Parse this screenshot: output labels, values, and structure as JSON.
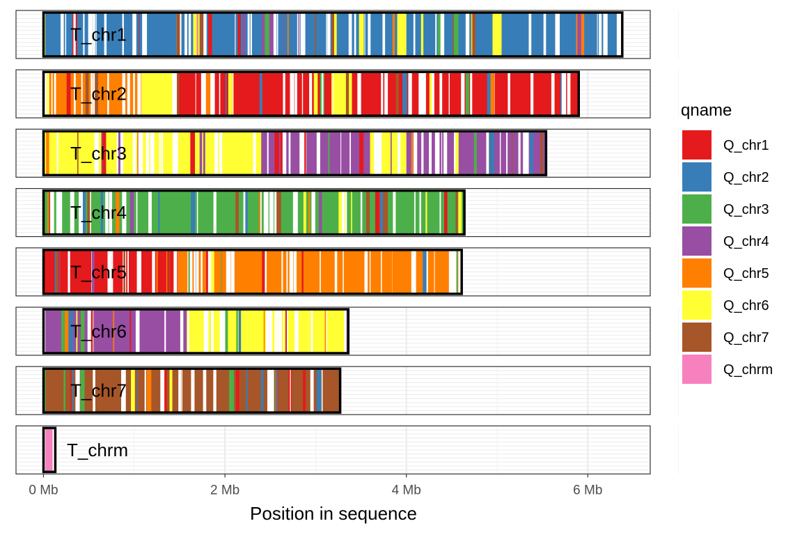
{
  "chart_data": {
    "type": "bar",
    "subtype": "chromosome-painting",
    "title": "",
    "xlabel": "Position in sequence",
    "ylabel": "",
    "xlim": [
      -0.15,
      6.7
    ],
    "x_unit": "Mb",
    "x_ticks": [
      {
        "value": 0,
        "label": "0 Mb"
      },
      {
        "value": 2,
        "label": "2 Mb"
      },
      {
        "value": 4,
        "label": "4 Mb"
      },
      {
        "value": 6,
        "label": "6 Mb"
      }
    ],
    "grid": true,
    "legend": {
      "title": "qname",
      "position": "right",
      "entries": [
        {
          "name": "Q_chr1",
          "color": "#E41A1C"
        },
        {
          "name": "Q_chr2",
          "color": "#377EB8"
        },
        {
          "name": "Q_chr3",
          "color": "#4DAF4A"
        },
        {
          "name": "Q_chr4",
          "color": "#984EA3"
        },
        {
          "name": "Q_chr5",
          "color": "#FF7F00"
        },
        {
          "name": "Q_chr6",
          "color": "#FFFF33"
        },
        {
          "name": "Q_chr7",
          "color": "#A65628"
        },
        {
          "name": "Q_chrm",
          "color": "#F781BF"
        }
      ]
    },
    "chromosomes": [
      {
        "name": "T_chr1",
        "length": 6.38,
        "segments": [
          {
            "start": 0.0,
            "end": 0.02,
            "q": "Q_chr6"
          },
          {
            "start": 0.02,
            "end": 1.65,
            "q": "Q_chr2"
          },
          {
            "start": 1.65,
            "end": 1.72,
            "q": "Q_chr6"
          },
          {
            "start": 1.72,
            "end": 3.9,
            "q": "Q_chr2"
          },
          {
            "start": 3.9,
            "end": 4.0,
            "q": "Q_chr6"
          },
          {
            "start": 4.0,
            "end": 4.95,
            "q": "Q_chr2"
          },
          {
            "start": 4.95,
            "end": 5.05,
            "q": "Q_chr6"
          },
          {
            "start": 5.05,
            "end": 6.33,
            "q": "Q_chr2"
          }
        ]
      },
      {
        "name": "T_chr2",
        "length": 5.9,
        "segments": [
          {
            "start": 0.0,
            "end": 1.08,
            "q": "Q_chr5"
          },
          {
            "start": 1.08,
            "end": 1.42,
            "q": "Q_chr6"
          },
          {
            "start": 1.42,
            "end": 3.15,
            "q": "Q_chr1"
          },
          {
            "start": 3.15,
            "end": 3.4,
            "q": "Q_chr6"
          },
          {
            "start": 3.4,
            "end": 5.9,
            "q": "Q_chr1"
          }
        ]
      },
      {
        "name": "T_chr3",
        "length": 5.54,
        "segments": [
          {
            "start": 0.0,
            "end": 2.4,
            "q": "Q_chr6"
          },
          {
            "start": 2.4,
            "end": 3.6,
            "q": "Q_chr4"
          },
          {
            "start": 3.6,
            "end": 4.0,
            "q": "Q_chr6"
          },
          {
            "start": 4.0,
            "end": 5.54,
            "q": "Q_chr4"
          }
        ]
      },
      {
        "name": "T_chr4",
        "length": 4.64,
        "segments": [
          {
            "start": 0.0,
            "end": 4.64,
            "q": "Q_chr3"
          }
        ]
      },
      {
        "name": "T_chr5",
        "length": 4.61,
        "segments": [
          {
            "start": 0.0,
            "end": 1.48,
            "q": "Q_chr1"
          },
          {
            "start": 1.48,
            "end": 4.61,
            "q": "Q_chr5"
          }
        ]
      },
      {
        "name": "T_chr6",
        "length": 3.36,
        "segments": [
          {
            "start": 0.0,
            "end": 1.58,
            "q": "Q_chr4"
          },
          {
            "start": 1.58,
            "end": 3.36,
            "q": "Q_chr6"
          }
        ]
      },
      {
        "name": "T_chr7",
        "length": 3.27,
        "segments": [
          {
            "start": 0.0,
            "end": 3.27,
            "q": "Q_chr7"
          }
        ]
      },
      {
        "name": "T_chrm",
        "length": 0.13,
        "segments": [
          {
            "start": 0.02,
            "end": 0.1,
            "q": "Q_chrm"
          }
        ]
      }
    ]
  }
}
